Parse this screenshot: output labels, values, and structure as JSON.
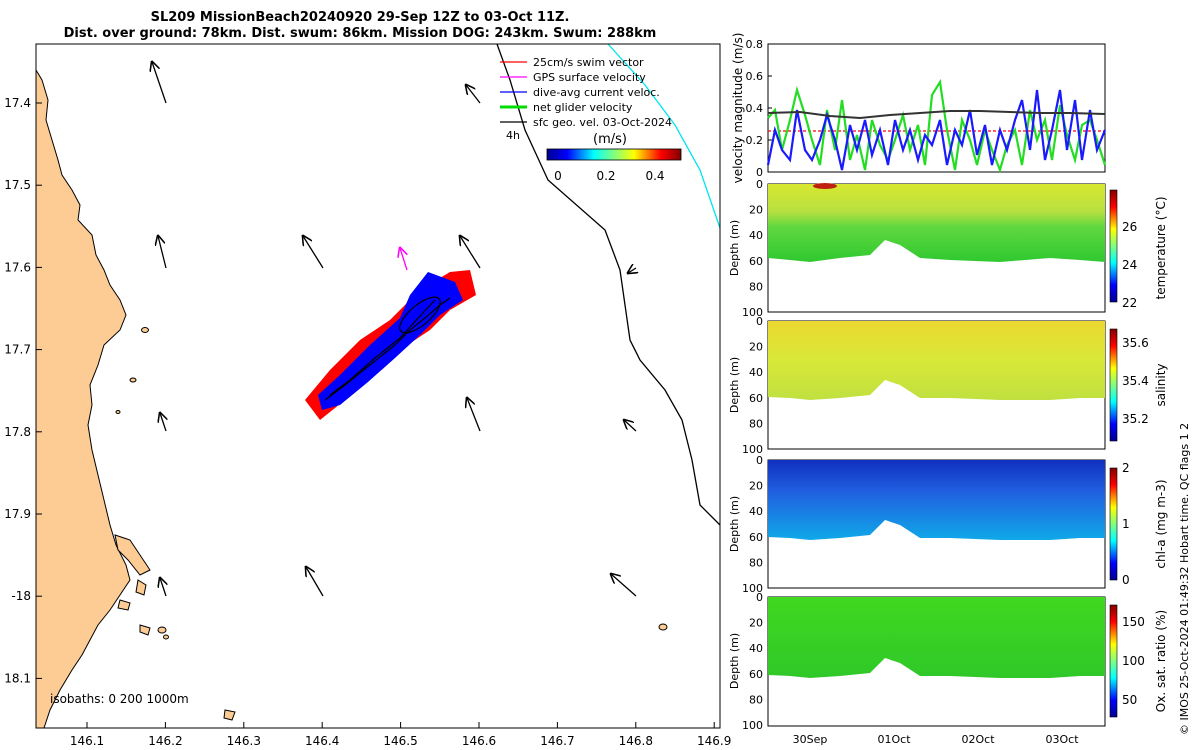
{
  "titles": {
    "line1": "SL209 MissionBeach20240920 29-Sep 12Z to 03-Oct 11Z.",
    "line2": "Dist. over ground: 78km. Dist. swum: 86km. Mission DOG: 243km. Swum: 288km"
  },
  "map": {
    "lon_ticks": [
      "146.1",
      "146.2",
      "146.3",
      "146.4",
      "146.5",
      "146.6",
      "146.7",
      "146.8",
      "146.9"
    ],
    "lat_ticks": [
      "17.4",
      "17.5",
      "17.6",
      "17.7",
      "17.8",
      "17.9",
      "-18",
      "18.1"
    ],
    "legend": {
      "items": [
        "25cm/s swim vector",
        "GPS surface velocity",
        "dive-avg current veloc.",
        "net glider velocity",
        "sfc geo. vel. 03-Oct-2024"
      ],
      "colors": [
        "#ff0000",
        "#ff00ff",
        "#0000ff",
        "#00dd00",
        "#000000"
      ],
      "time_label": "4h",
      "colorbar_title": "(m/s)",
      "colorbar_ticks": [
        "0",
        "0.2",
        "0.4"
      ]
    },
    "isobaths_label": "isobaths: 0   200  1000m",
    "land_color": "#fdcb94",
    "track_color": "#00e5ee"
  },
  "velocity_panel": {
    "ylabel": "velocity magnitude (m/s)",
    "yticks": [
      "0.8",
      "0.6",
      "0.4",
      "0.2",
      "0"
    ]
  },
  "sections": [
    {
      "cbar_label": "temperature (°C)",
      "cbar_ticks": [
        "26",
        "24",
        "22"
      ],
      "ylabel": "Depth (m)",
      "yticks": [
        "0",
        "20",
        "40",
        "60",
        "80",
        "100"
      ]
    },
    {
      "cbar_label": "salinity",
      "cbar_ticks": [
        "35.6",
        "35.4",
        "35.2"
      ],
      "ylabel": "Depth (m)",
      "yticks": [
        "0",
        "20",
        "40",
        "60",
        "80",
        "100"
      ]
    },
    {
      "cbar_label": "chl-a (mg m-3)",
      "cbar_ticks": [
        "2",
        "1",
        "0"
      ],
      "ylabel": "Depth (m)",
      "yticks": [
        "0",
        "20",
        "40",
        "60",
        "80",
        "100"
      ]
    },
    {
      "cbar_label": "Ox. sat. ratio (%)",
      "cbar_ticks": [
        "150",
        "100",
        "50"
      ],
      "ylabel": "Depth (m)",
      "yticks": [
        "0",
        "20",
        "40",
        "60",
        "80",
        "100"
      ]
    }
  ],
  "time_ticks": [
    "30Sep",
    "01Oct",
    "02Oct",
    "03Oct"
  ],
  "credit": "© IMOS 25-Oct-2024 01:49:32 Hobart time. QC flags 1  2"
}
